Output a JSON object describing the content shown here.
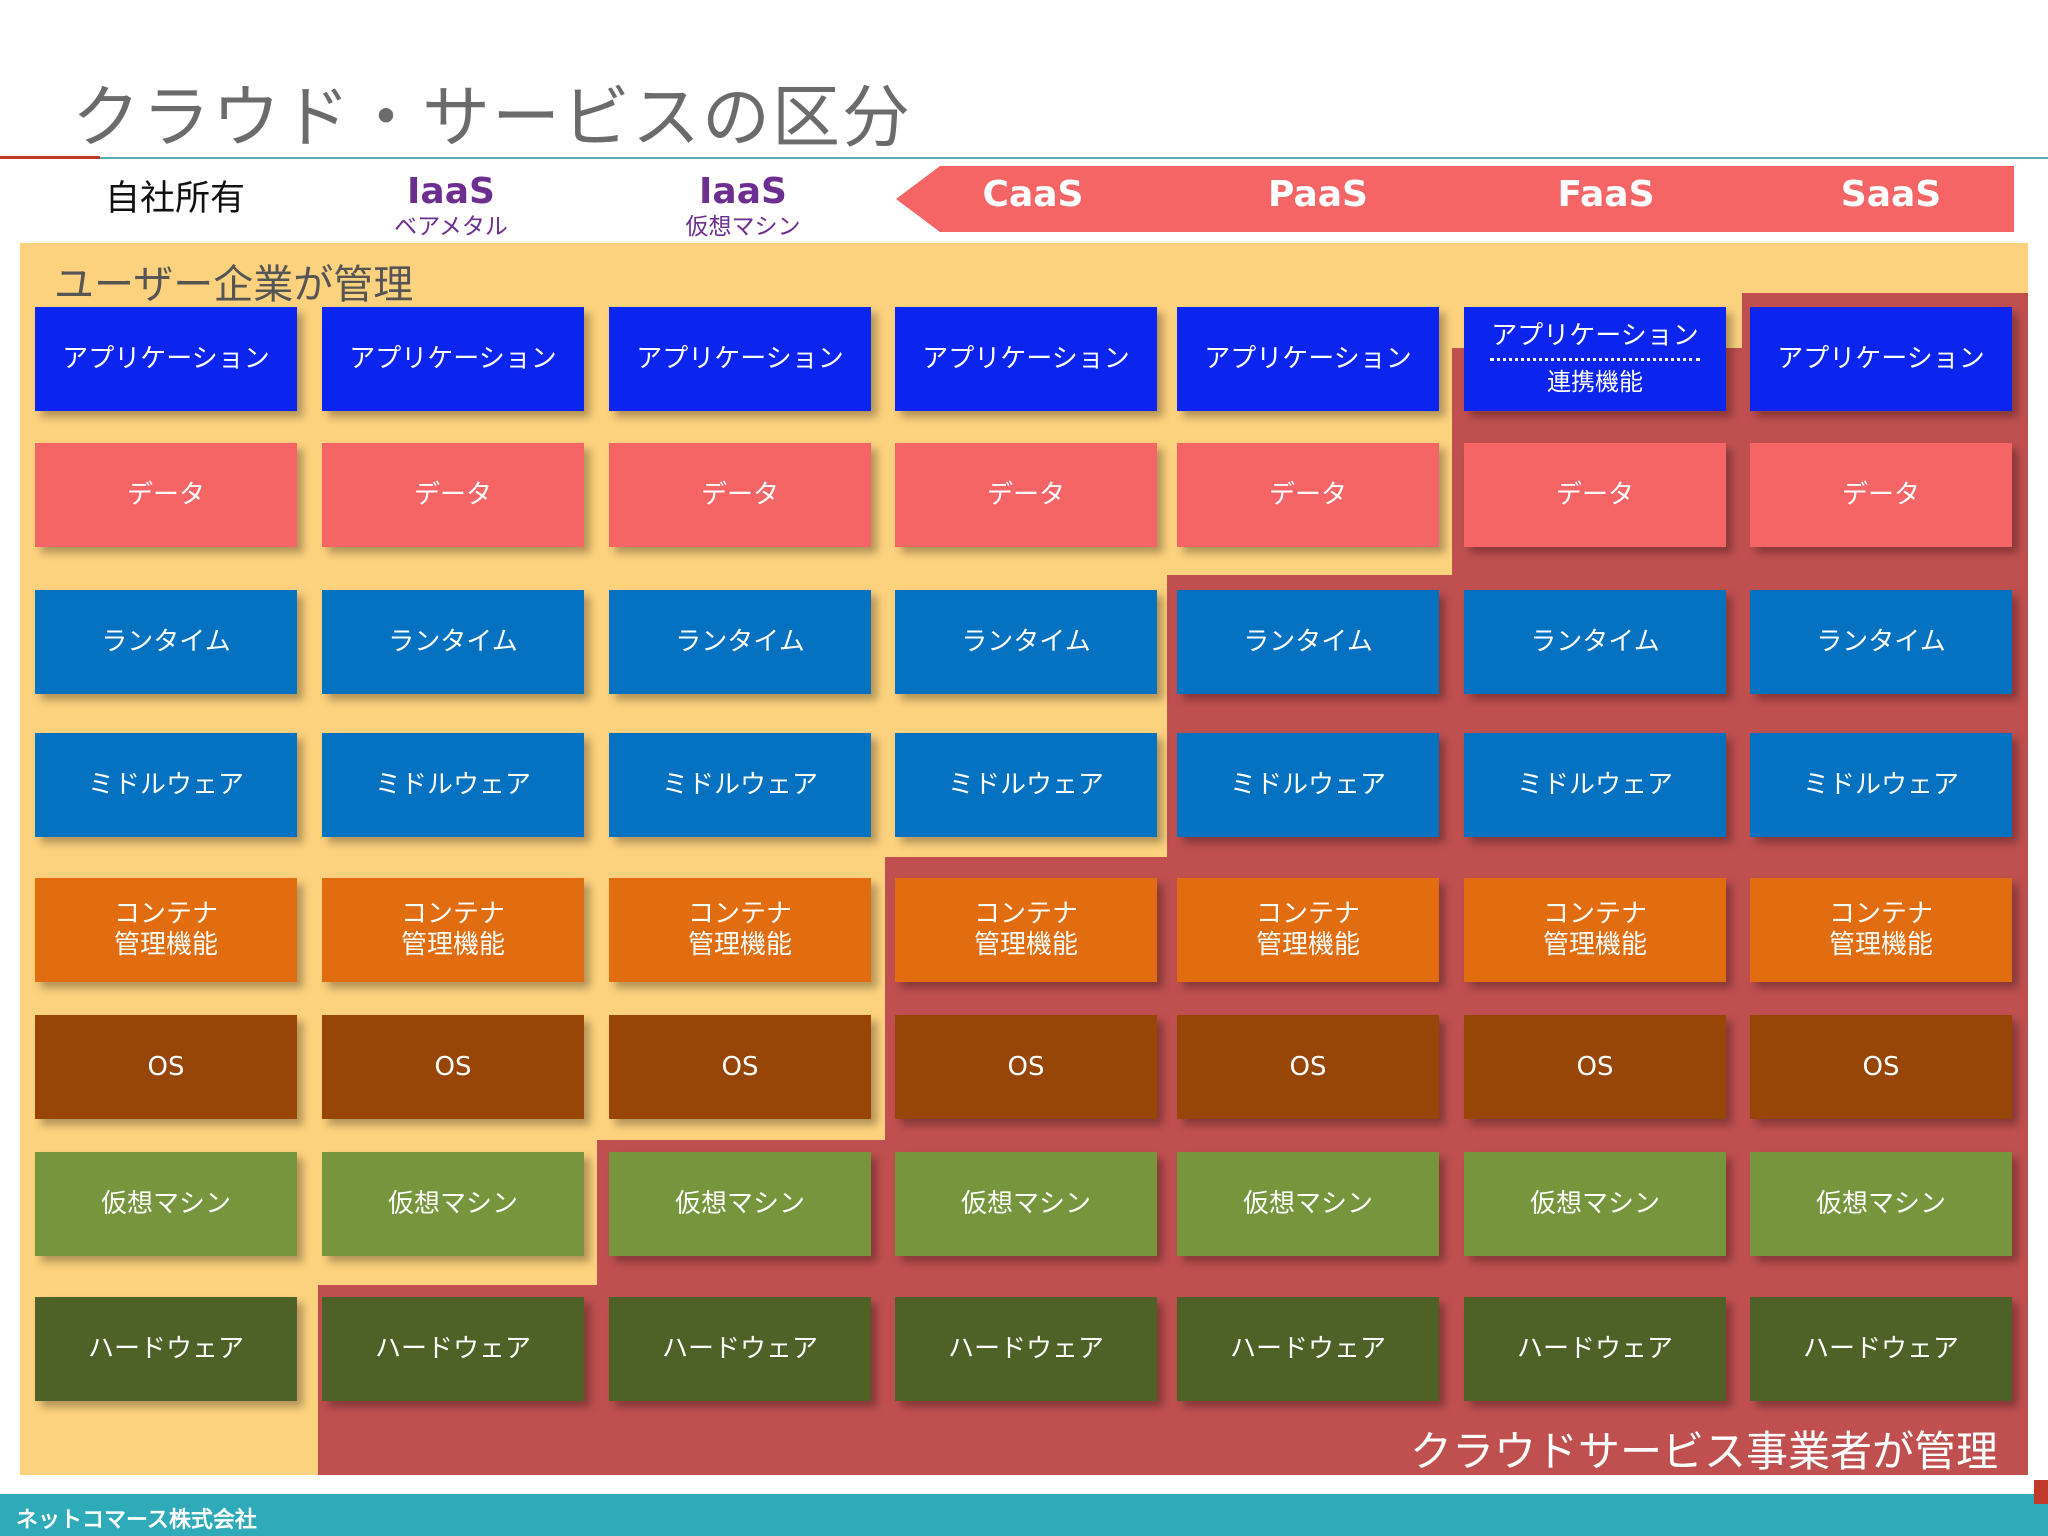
{
  "title": "クラウド・サービスの区分",
  "columns": [
    {
      "label": "自社所有"
    },
    {
      "label": "IaaS",
      "sublabel": "ベアメタル"
    },
    {
      "label": "IaaS",
      "sublabel": "仮想マシン"
    },
    {
      "label": "CaaS"
    },
    {
      "label": "PaaS"
    },
    {
      "label": "FaaS"
    },
    {
      "label": "SaaS"
    }
  ],
  "layers": [
    {
      "label": "アプリケーション",
      "color": "#0b25ee"
    },
    {
      "label": "データ",
      "color": "#f56566"
    },
    {
      "label": "ランタイム",
      "color": "#0571c1"
    },
    {
      "label": "ミドルウェア",
      "color": "#0571c1"
    },
    {
      "label": "コンテナ\n管理機能",
      "color": "#e26d10"
    },
    {
      "label": "OS",
      "color": "#974608"
    },
    {
      "label": "仮想マシン",
      "color": "#76953d"
    },
    {
      "label": "ハードウェア",
      "color": "#4e6127"
    }
  ],
  "faas_application": {
    "top": "アプリケーション",
    "bottom": "連携機能"
  },
  "legend": {
    "user_managed": "ユーザー企業が管理",
    "provider_managed": "クラウドサービス事業者が管理"
  },
  "colors": {
    "user_area": "#fdd27e",
    "provider_area": "#c05050",
    "arrow": "#f56566",
    "iaas_text": "#6c2e8f",
    "footer": "#2eaab8"
  },
  "footer": {
    "company": "ネットコマース株式会社"
  }
}
